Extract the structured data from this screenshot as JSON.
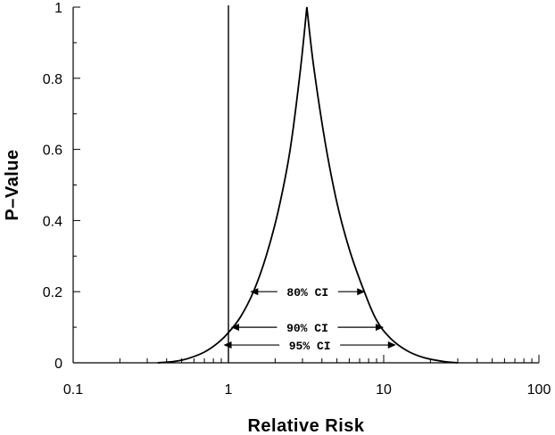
{
  "chart_data": {
    "type": "line",
    "title": "",
    "xlabel": "Relative Risk",
    "ylabel": "P–Value",
    "xscale": "log",
    "xlim": [
      0.1,
      100
    ],
    "ylim": [
      0,
      1
    ],
    "x_ticks": [
      "0.1",
      "1",
      "10",
      "100"
    ],
    "y_ticks": [
      "0",
      "0.2",
      "0.4",
      "0.6",
      "0.8",
      "1"
    ],
    "reference_line_x": 1,
    "peak_x": 3.2,
    "series": [
      {
        "x": [
          0.35,
          0.45,
          0.55,
          0.7,
          0.85,
          1.0,
          1.2,
          1.45,
          1.75,
          2.1,
          2.5,
          2.9,
          3.2,
          3.55,
          4.2,
          5.0,
          6.0,
          7.5,
          9.0,
          11.0,
          14.0,
          18.0,
          24.0,
          30.0
        ],
        "y": [
          0.0,
          0.004,
          0.012,
          0.03,
          0.055,
          0.085,
          0.13,
          0.2,
          0.3,
          0.43,
          0.6,
          0.82,
          1.0,
          0.83,
          0.62,
          0.45,
          0.32,
          0.2,
          0.12,
          0.07,
          0.035,
          0.015,
          0.004,
          0.0
        ]
      }
    ],
    "annotations": [
      {
        "label": "80% CI",
        "x_low": 1.38,
        "x_high": 7.6,
        "p": 0.2
      },
      {
        "label": "90% CI",
        "x_low": 1.04,
        "x_high": 10.0,
        "p": 0.1
      },
      {
        "label": "95% CI",
        "x_low": 0.93,
        "x_high": 12.0,
        "p": 0.05
      }
    ],
    "grid": false,
    "legend": "none",
    "colors": {
      "line": "#000000",
      "background": "#ffffff"
    }
  }
}
